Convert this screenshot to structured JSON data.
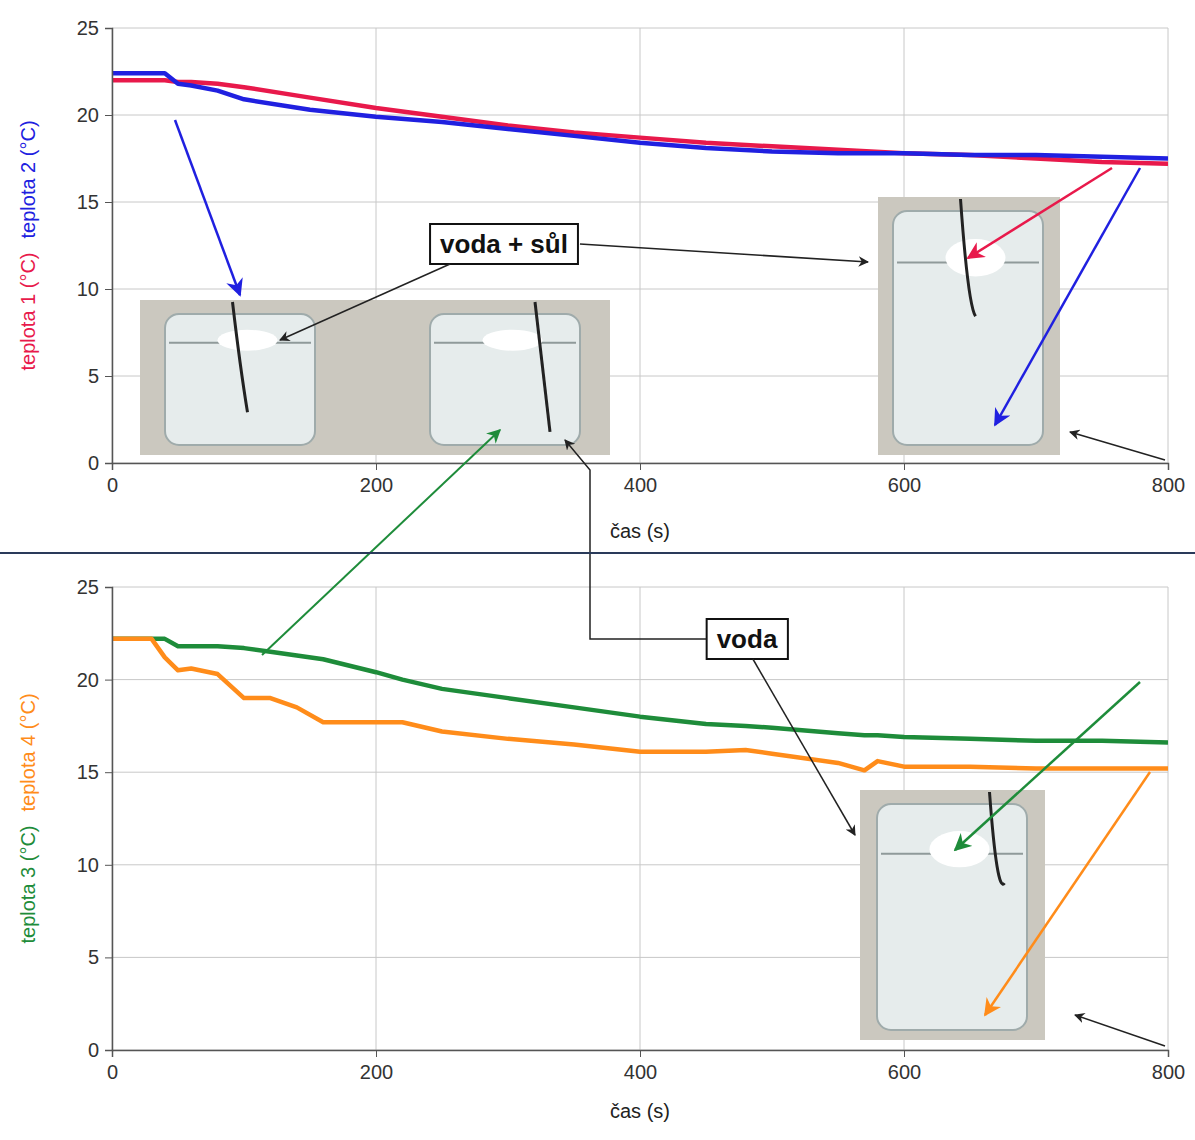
{
  "chart_data": [
    {
      "type": "line",
      "x_label": "čas (s)",
      "x": [
        0,
        20,
        40,
        50,
        60,
        80,
        100,
        150,
        200,
        250,
        300,
        350,
        400,
        450,
        500,
        550,
        600,
        650,
        700,
        750,
        800
      ],
      "series": [
        {
          "name": "teplota 1 (°C)",
          "color": "#e8194b",
          "values": [
            22.0,
            22.0,
            22.0,
            21.9,
            21.9,
            21.8,
            21.6,
            21.0,
            20.4,
            19.9,
            19.4,
            19.0,
            18.7,
            18.4,
            18.2,
            18.0,
            17.8,
            17.7,
            17.5,
            17.3,
            17.2
          ]
        },
        {
          "name": "teplota 2 (°C)",
          "color": "#2020e0",
          "values": [
            22.4,
            22.4,
            22.4,
            21.8,
            21.7,
            21.4,
            20.9,
            20.3,
            19.9,
            19.6,
            19.2,
            18.8,
            18.4,
            18.1,
            17.9,
            17.8,
            17.8,
            17.7,
            17.7,
            17.6,
            17.5
          ]
        }
      ],
      "xlim": [
        0,
        800
      ],
      "xticks": [
        0,
        200,
        400,
        600,
        800
      ],
      "ylim": [
        0,
        25
      ],
      "yticks": [
        0,
        5,
        10,
        15,
        20,
        25
      ],
      "grid": true,
      "annotations": [
        {
          "text": "voda + sůl"
        }
      ]
    },
    {
      "type": "line",
      "x_label": "čas (s)",
      "x": [
        0,
        20,
        30,
        40,
        50,
        60,
        80,
        100,
        120,
        140,
        160,
        200,
        220,
        250,
        300,
        350,
        400,
        450,
        480,
        500,
        550,
        570,
        580,
        600,
        650,
        700,
        750,
        800
      ],
      "series": [
        {
          "name": "teplota 3 (°C)",
          "color": "#1e8c3a",
          "values": [
            22.2,
            22.2,
            22.2,
            22.2,
            21.8,
            21.8,
            21.8,
            21.7,
            21.5,
            21.3,
            21.1,
            20.4,
            20.0,
            19.5,
            19.0,
            18.5,
            18.0,
            17.6,
            17.5,
            17.4,
            17.1,
            17.0,
            17.0,
            16.9,
            16.8,
            16.7,
            16.7,
            16.6
          ]
        },
        {
          "name": "teplota 4 (°C)",
          "color": "#ff8c1a",
          "values": [
            22.2,
            22.2,
            22.2,
            21.2,
            20.5,
            20.6,
            20.3,
            19.0,
            19.0,
            18.5,
            17.7,
            17.7,
            17.7,
            17.2,
            16.8,
            16.5,
            16.1,
            16.1,
            16.2,
            16.0,
            15.5,
            15.1,
            15.6,
            15.3,
            15.3,
            15.2,
            15.2,
            15.2
          ]
        }
      ],
      "xlim": [
        0,
        800
      ],
      "xticks": [
        0,
        200,
        400,
        600,
        800
      ],
      "ylim": [
        0,
        25
      ],
      "yticks": [
        0,
        5,
        10,
        15,
        20,
        25
      ],
      "grid": true,
      "annotations": [
        {
          "text": "voda"
        }
      ]
    }
  ]
}
